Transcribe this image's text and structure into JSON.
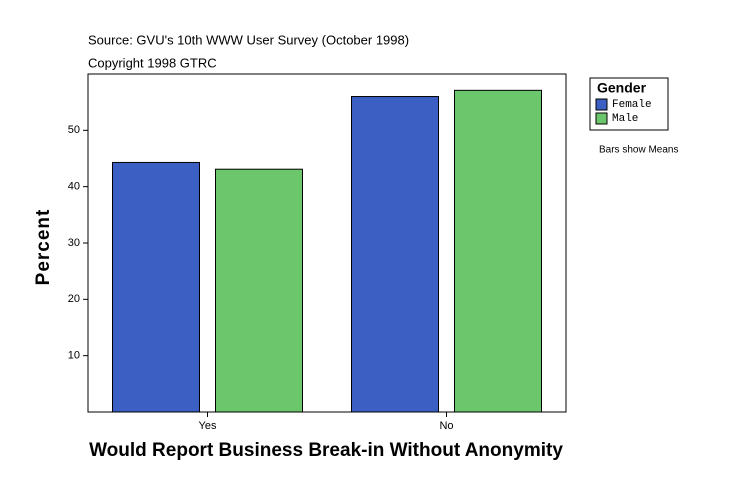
{
  "chart_data": {
    "type": "bar",
    "subtitle": "Source: GVU's 10th WWW User Survey (October 1998)",
    "copyright": "Copyright 1998 GTRC",
    "x_label": "Would Report Business Break-in Without Anonymity",
    "y_label": "Percent",
    "categories": [
      "Yes",
      "No"
    ],
    "series": [
      {
        "name": "Female",
        "color": "#3b5fc3",
        "values": [
          44.3,
          56.0
        ]
      },
      {
        "name": "Male",
        "color": "#6cc76c",
        "values": [
          43.1,
          57.1
        ]
      }
    ],
    "legend_title": "Gender",
    "annotation": "Bars show Means",
    "legend": "right",
    "ylim": [
      0,
      60
    ],
    "yticks": [
      10,
      20,
      30,
      40,
      50
    ]
  }
}
